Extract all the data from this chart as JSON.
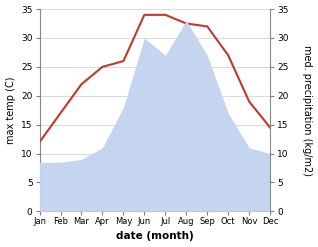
{
  "months": [
    "Jan",
    "Feb",
    "Mar",
    "Apr",
    "May",
    "Jun",
    "Jul",
    "Aug",
    "Sep",
    "Oct",
    "Nov",
    "Dec"
  ],
  "temperature": [
    12,
    17,
    22,
    25,
    26,
    34,
    34,
    32.5,
    32,
    27,
    19,
    14.5
  ],
  "precipitation": [
    8.5,
    8.5,
    9,
    11,
    18,
    30,
    27,
    33,
    27,
    17,
    11,
    10
  ],
  "temp_color": "#c0392b",
  "precip_color": "#c5d5f0",
  "ylim_left": [
    0,
    35
  ],
  "ylim_right": [
    0,
    35
  ],
  "yticks": [
    0,
    5,
    10,
    15,
    20,
    25,
    30,
    35
  ],
  "xlabel": "date (month)",
  "ylabel_left": "max temp (C)",
  "ylabel_right": "med. precipitation (kg/m2)",
  "bg_color": "#ffffff",
  "label_fontsize": 7.5
}
